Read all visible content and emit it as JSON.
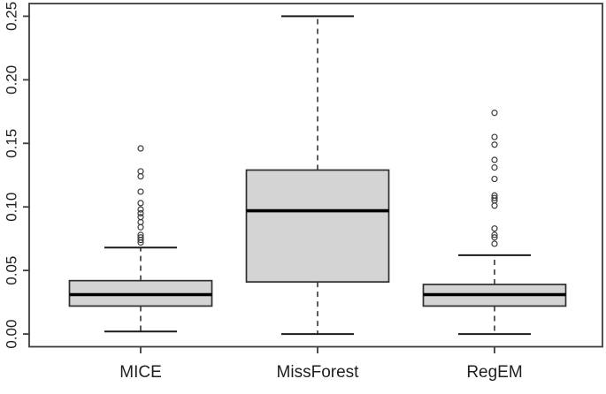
{
  "figure": {
    "background": "#ffffff",
    "border_color": "#3d3d3d"
  },
  "chart_data": {
    "type": "boxplot",
    "title": "",
    "xlabel": "",
    "ylabel": "",
    "categories": [
      "MICE",
      "MissForest",
      "RegEM"
    ],
    "ylim": [
      0,
      0.25
    ],
    "yticks": [
      0,
      0.05,
      0.1,
      0.15,
      0.2,
      0.25
    ],
    "ytick_labels": [
      "0.00",
      "0.05",
      "0.10",
      "0.15",
      "0.20",
      "0.25"
    ],
    "grid": false,
    "legend_position": "none",
    "orientation": "vertical",
    "whisker_style": "dashed",
    "colors": {
      "box_fill": "#d4d4d4",
      "box_border": "#2e2e2e",
      "median": "#000000",
      "whisker": "#1a1a1a",
      "outlier": "#3a3a3a",
      "axis": "#3d3d3d",
      "tick_text": "#1f1f1f"
    },
    "series": [
      {
        "name": "MICE",
        "whisker_low": 0.002,
        "q1": 0.022,
        "median": 0.031,
        "q3": 0.042,
        "whisker_high": 0.068,
        "outliers": [
          0.072,
          0.074,
          0.076,
          0.078,
          0.084,
          0.088,
          0.092,
          0.095,
          0.098,
          0.103,
          0.112,
          0.124,
          0.128,
          0.146
        ]
      },
      {
        "name": "MissForest",
        "whisker_low": 0.0,
        "q1": 0.041,
        "median": 0.097,
        "q3": 0.129,
        "whisker_high": 0.25,
        "outliers": []
      },
      {
        "name": "RegEM",
        "whisker_low": 0.0,
        "q1": 0.022,
        "median": 0.031,
        "q3": 0.039,
        "whisker_high": 0.062,
        "outliers": [
          0.071,
          0.076,
          0.078,
          0.083,
          0.101,
          0.105,
          0.107,
          0.109,
          0.122,
          0.131,
          0.137,
          0.149,
          0.155,
          0.174
        ]
      }
    ]
  }
}
